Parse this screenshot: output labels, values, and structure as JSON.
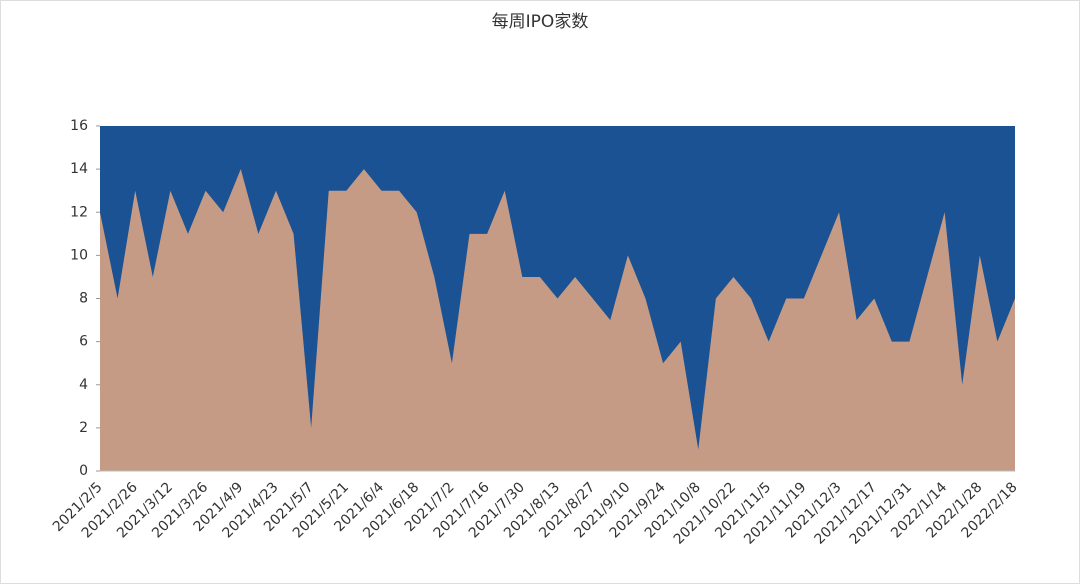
{
  "chart_data": {
    "type": "area",
    "title": "每周IPO家数",
    "categories": [
      "2021/2/5",
      null,
      "2021/2/26",
      null,
      "2021/3/12",
      null,
      "2021/3/26",
      null,
      "2021/4/9",
      null,
      "2021/4/23",
      null,
      "2021/5/7",
      null,
      "2021/5/21",
      null,
      "2021/6/4",
      null,
      "2021/6/18",
      null,
      "2021/7/2",
      null,
      "2021/7/16",
      null,
      "2021/7/30",
      null,
      "2021/8/13",
      null,
      "2021/8/27",
      null,
      "2021/9/10",
      null,
      "2021/9/24",
      null,
      "2021/10/8",
      null,
      "2021/10/22",
      null,
      "2021/11/5",
      null,
      "2021/11/19",
      null,
      "2021/12/3",
      null,
      "2021/12/17",
      null,
      "2021/12/31",
      null,
      "2022/1/14",
      null,
      "2022/1/28",
      null,
      "2022/2/18"
    ],
    "values": [
      12,
      8,
      13,
      9,
      13,
      11,
      13,
      12,
      14,
      11,
      13,
      11,
      2,
      13,
      13,
      14,
      13,
      13,
      12,
      9,
      5,
      11,
      11,
      13,
      9,
      9,
      8,
      9,
      8,
      7,
      10,
      8,
      5,
      6,
      1,
      8,
      9,
      8,
      6,
      8,
      8,
      10,
      12,
      7,
      8,
      6,
      6,
      9,
      12,
      4,
      10,
      6,
      8
    ],
    "color": "#c69b85",
    "plot_background": "#1b5293",
    "ylim": [
      0,
      16
    ],
    "yticks": [
      0,
      2,
      4,
      6,
      8,
      10,
      12,
      14,
      16
    ]
  }
}
